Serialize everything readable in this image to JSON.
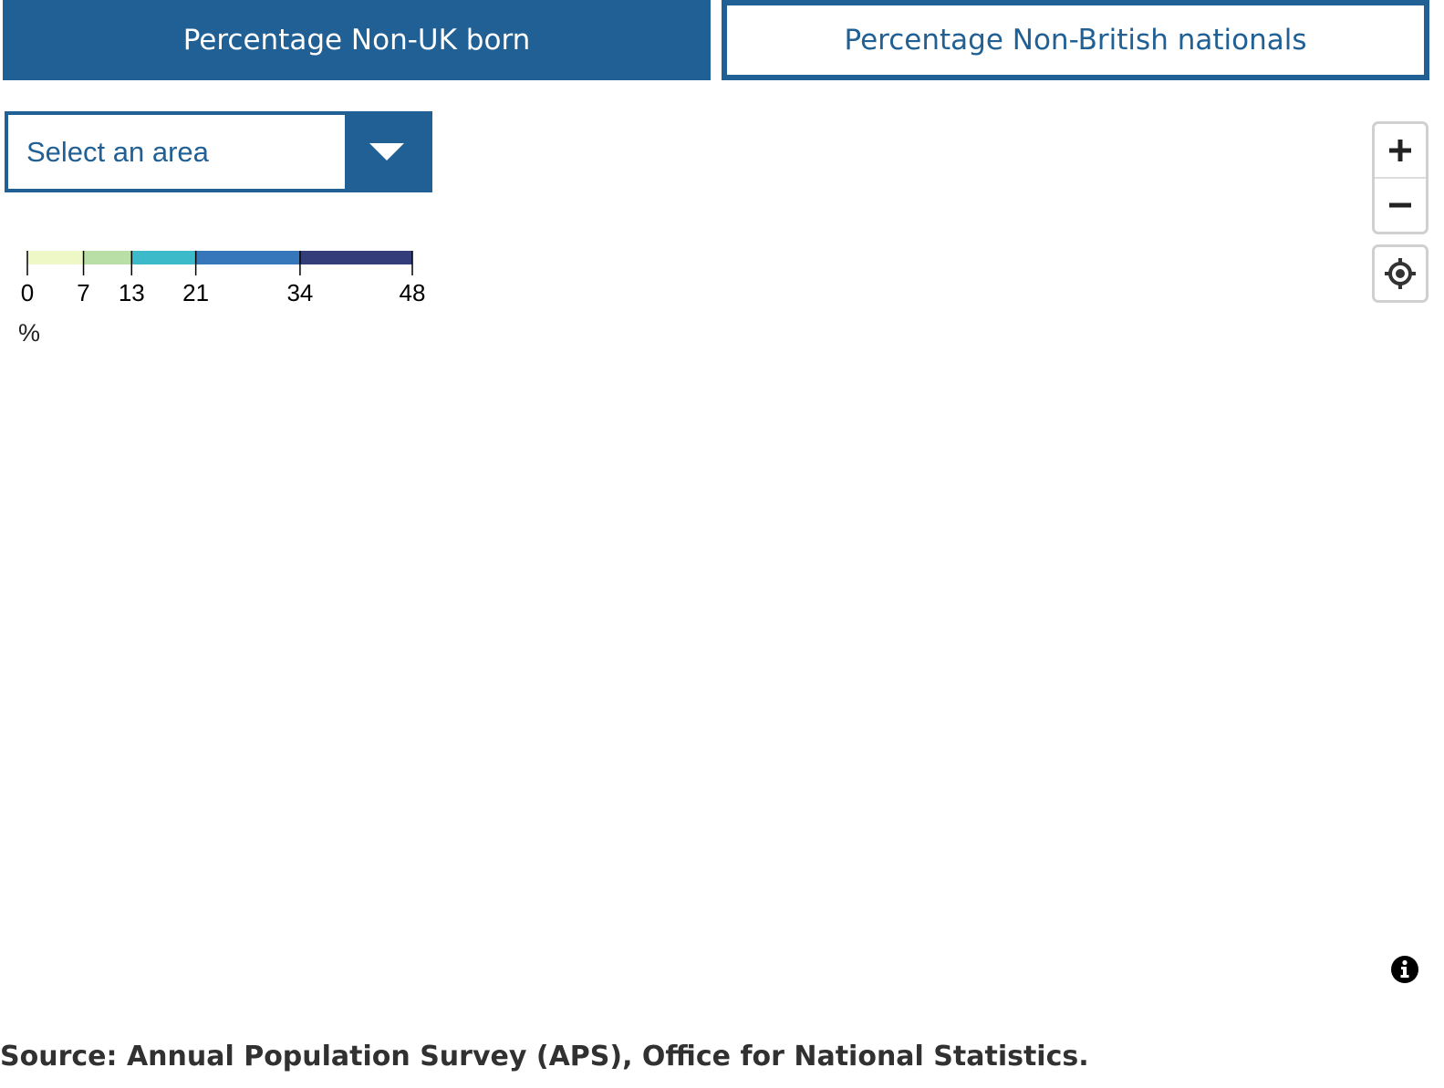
{
  "tabs": [
    {
      "label": "Percentage Non-UK born",
      "active": true
    },
    {
      "label": "Percentage Non-British nationals",
      "active": false
    }
  ],
  "area_select": {
    "label": "Select an area",
    "icon": "chevron-down-icon"
  },
  "legend": {
    "unit": "%",
    "breaks": [
      0,
      7,
      13,
      21,
      34,
      48
    ],
    "colors": [
      "#edf8c6",
      "#badfa6",
      "#3cbac9",
      "#3677bb",
      "#333d7a"
    ]
  },
  "map_controls": {
    "zoom_in_icon": "plus-icon",
    "zoom_out_icon": "minus-icon",
    "geolocate_icon": "crosshair-icon",
    "info_icon": "info-icon"
  },
  "colors": {
    "brand": "#206095",
    "text": "#323132"
  },
  "source": {
    "text": "Source: Annual Population Survey (APS), Office for National Statistics."
  }
}
